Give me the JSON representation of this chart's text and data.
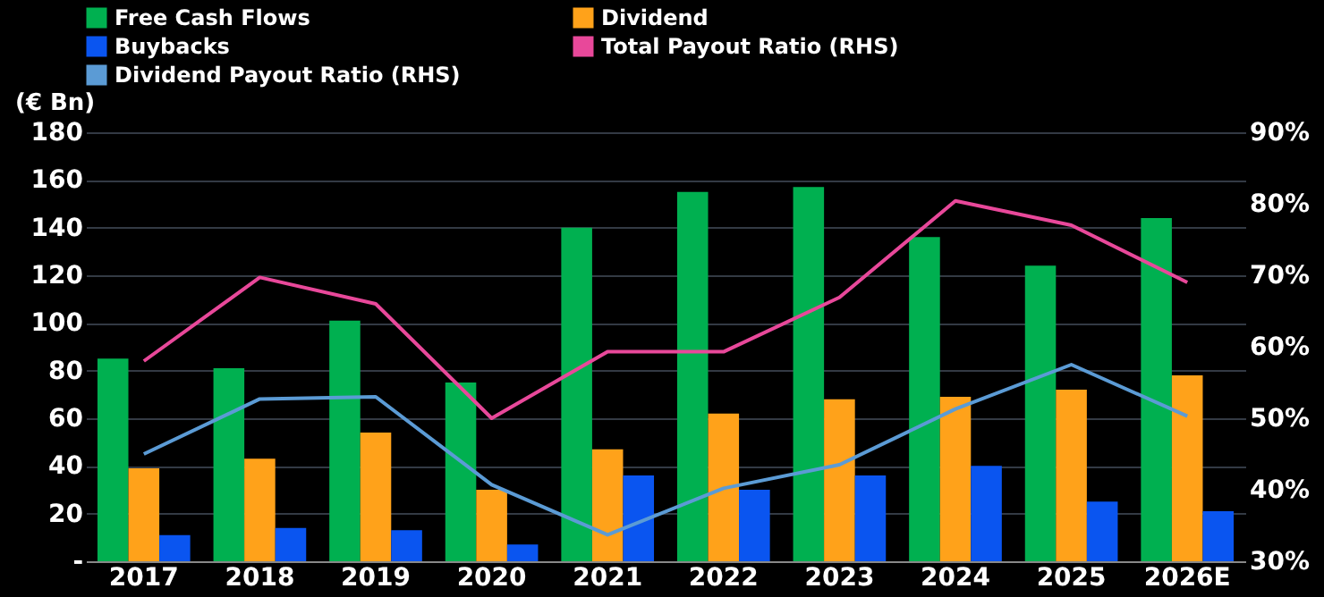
{
  "chart_data": {
    "type": "bar",
    "ylabel": "(€ Bn)",
    "categories": [
      "2017",
      "2018",
      "2019",
      "2020",
      "2021",
      "2022",
      "2023",
      "2024",
      "2025",
      "2026E"
    ],
    "series": [
      {
        "name": "Free Cash Flows",
        "color": "#00b050",
        "values": [
          85,
          81,
          101,
          75,
          140,
          155,
          157,
          136,
          124,
          144
        ]
      },
      {
        "name": "Dividend",
        "color": "#ffa21a",
        "values": [
          39,
          43,
          54,
          30,
          47,
          62,
          68,
          69,
          72,
          78
        ]
      },
      {
        "name": "Buybacks",
        "color": "#0a55f0",
        "values": [
          11,
          14,
          13,
          7,
          36,
          30,
          36,
          40,
          25,
          21
        ]
      },
      {
        "name": "Total Payout Ratio (RHS)",
        "type": "line",
        "axis": "y2",
        "color": "#e8489a",
        "values": [
          58,
          69.7,
          66,
          50,
          59.3,
          59.3,
          66.9,
          80.4,
          77,
          69
        ]
      },
      {
        "name": "Dividend Payout Ratio (RHS)",
        "type": "line",
        "axis": "y2",
        "color": "#5b9bd5",
        "values": [
          45,
          52.7,
          53,
          40.7,
          33.7,
          40.2,
          43.5,
          51.3,
          57.5,
          50.3
        ]
      }
    ],
    "ylim": [
      0,
      180
    ],
    "yticks": [
      {
        "value": 0,
        "label": "-"
      },
      20,
      40,
      60,
      80,
      100,
      120,
      140,
      160,
      180
    ],
    "y2lim": [
      30,
      90
    ],
    "y2ticks": [
      {
        "value": 30,
        "label": "30%"
      },
      {
        "value": 40,
        "label": "40%"
      },
      {
        "value": 50,
        "label": "50%"
      },
      {
        "value": 60,
        "label": "60%"
      },
      {
        "value": 70,
        "label": "70%"
      },
      {
        "value": 80,
        "label": "80%"
      },
      {
        "value": 90,
        "label": "90%"
      }
    ],
    "grid": "y",
    "legend": "top"
  }
}
